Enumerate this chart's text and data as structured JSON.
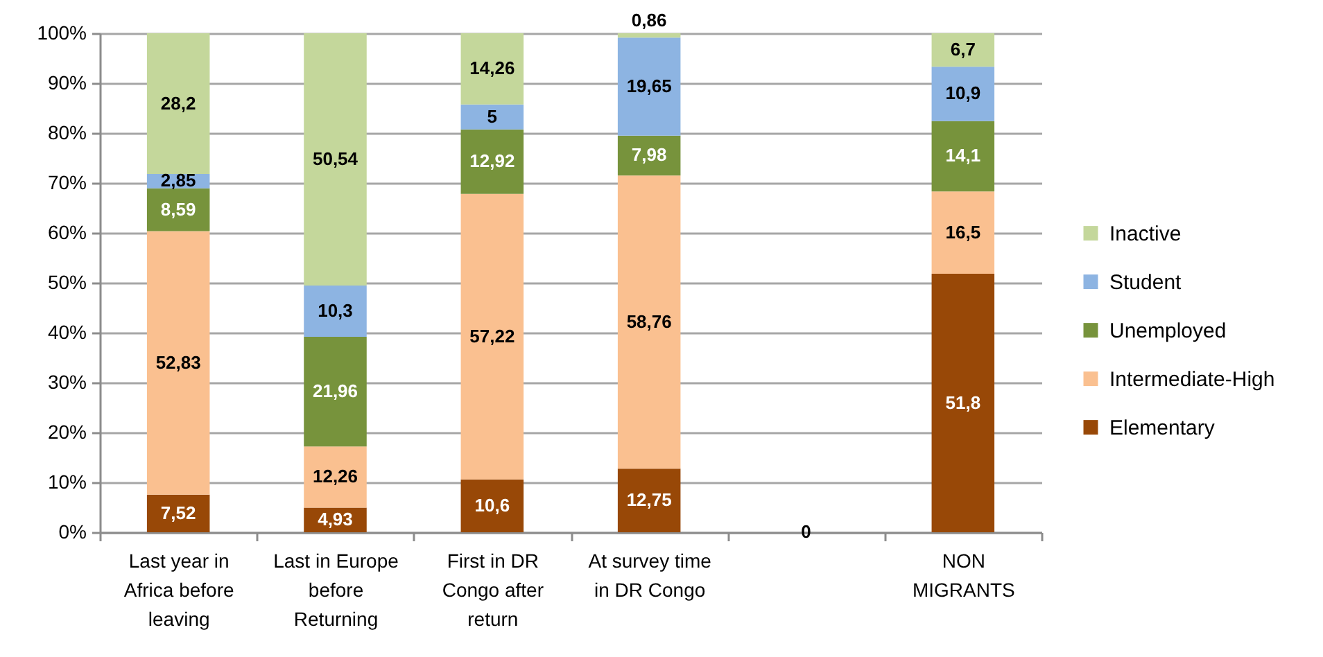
{
  "chart_data": {
    "type": "bar",
    "stacked": true,
    "categories": [
      "Last year in Africa before leaving",
      "Last in Europe before Returning",
      "First in DR Congo after return",
      "At survey time in DR Congo",
      null,
      "NON MIGRANTS"
    ],
    "series": [
      {
        "name": "Elementary",
        "color": "#984807",
        "values": [
          7.52,
          4.93,
          10.6,
          12.75,
          0,
          51.8
        ],
        "value_labels": [
          "7,52",
          "4,93",
          "10,6",
          "12,75",
          "0",
          "51,8"
        ]
      },
      {
        "name": "Intermediate-High",
        "color": "#fac090",
        "values": [
          52.83,
          12.26,
          57.22,
          58.76,
          0,
          16.5
        ],
        "value_labels": [
          "52,83",
          "12,26",
          "57,22",
          "58,76",
          null,
          "16,5"
        ]
      },
      {
        "name": "Unemployed",
        "color": "#77933c",
        "values": [
          8.59,
          21.96,
          12.92,
          7.98,
          0,
          14.1
        ],
        "value_labels": [
          "8,59",
          "21,96",
          "12,92",
          "7,98",
          null,
          "14,1"
        ]
      },
      {
        "name": "Student",
        "color": "#8db4e2",
        "values": [
          2.85,
          10.3,
          5,
          19.65,
          0,
          10.9
        ],
        "value_labels": [
          "2,85",
          "10,3",
          "5",
          "19,65",
          null,
          "10,9"
        ]
      },
      {
        "name": "Inactive",
        "color": "#c4d79b",
        "values": [
          28.2,
          50.54,
          14.26,
          0.86,
          0,
          6.7
        ],
        "value_labels": [
          "28,2",
          "50,54",
          "14,26",
          "0,86",
          null,
          "6,7"
        ]
      }
    ],
    "ylim": [
      0,
      100
    ],
    "yticks": [
      {
        "value": 0,
        "label": "0%"
      },
      {
        "value": 10,
        "label": "10%"
      },
      {
        "value": 20,
        "label": "20%"
      },
      {
        "value": 30,
        "label": "30%"
      },
      {
        "value": 40,
        "label": "40%"
      },
      {
        "value": 50,
        "label": "50%"
      },
      {
        "value": 60,
        "label": "60%"
      },
      {
        "value": 70,
        "label": "70%"
      },
      {
        "value": 80,
        "label": "80%"
      },
      {
        "value": 90,
        "label": "90%"
      },
      {
        "value": 100,
        "label": "100%"
      }
    ],
    "grid": "y",
    "legend": "right"
  }
}
